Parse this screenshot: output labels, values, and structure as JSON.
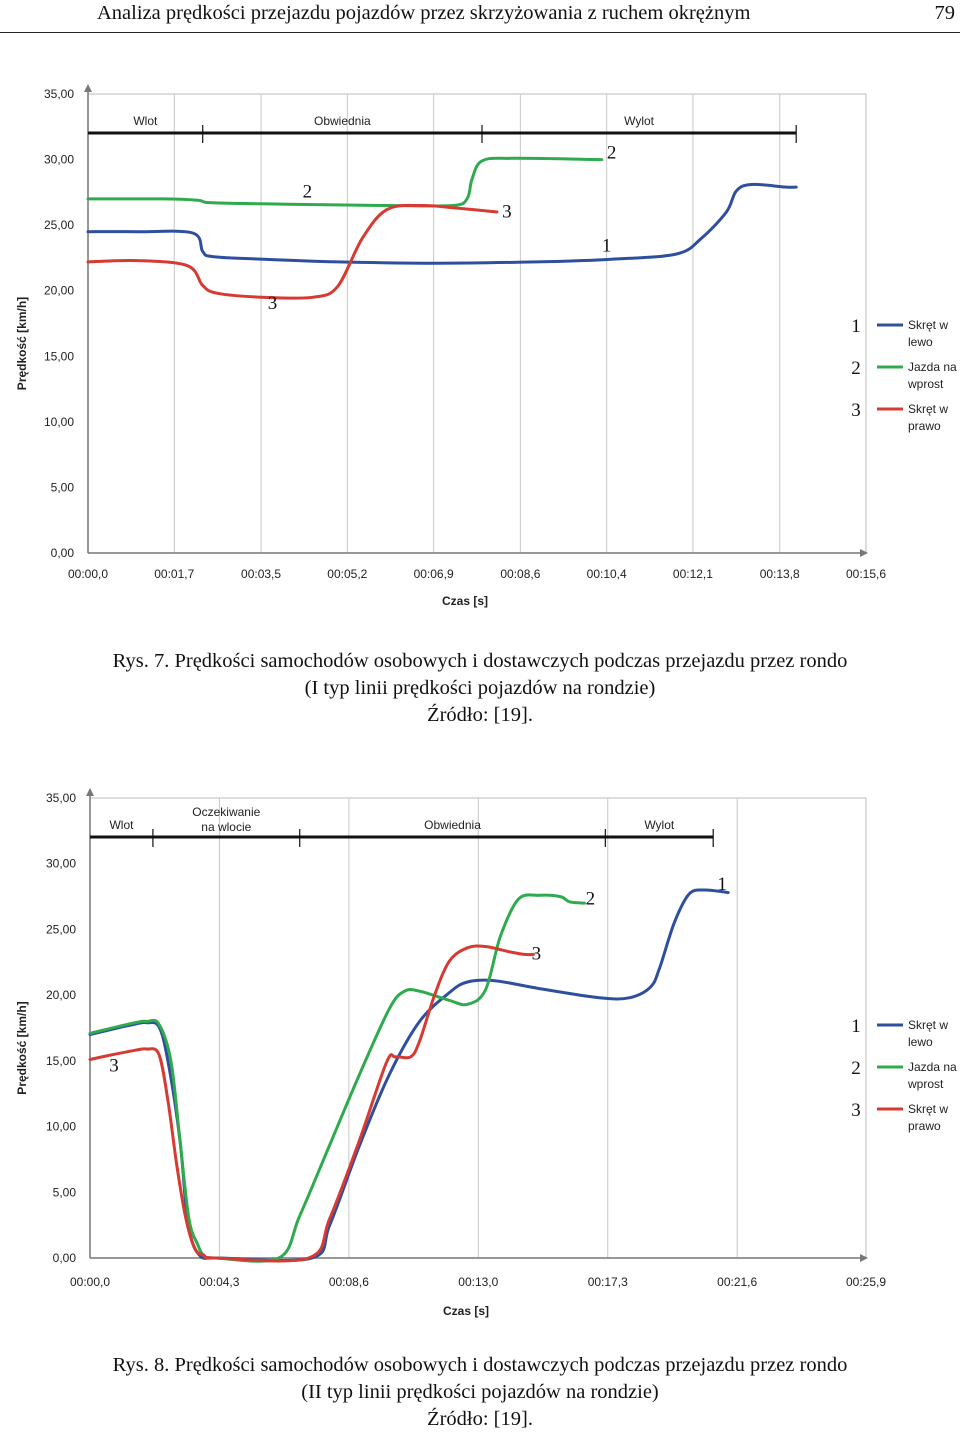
{
  "header": {
    "running_title": "Analiza prędkości przejazdu pojazdów przez skrzyżowania z ruchem okrężnym",
    "page_number": "79"
  },
  "chart_data": [
    {
      "type": "line",
      "ylabel": "Prędkość [km/h]",
      "xlabel": "Czas [s]",
      "ylim": [
        0,
        35
      ],
      "y_ticks": [
        "0,00",
        "5,00",
        "10,00",
        "15,00",
        "20,00",
        "25,00",
        "30,00",
        "35,00"
      ],
      "x_ticks": [
        "00:00,0",
        "00:01,7",
        "00:03,5",
        "00:05,2",
        "00:06,9",
        "00:08,6",
        "00:10,4",
        "00:12,1",
        "00:13,8",
        "00:15,6"
      ],
      "x_tick_seconds": [
        0,
        1.73,
        3.47,
        5.2,
        6.93,
        8.67,
        10.4,
        12.13,
        13.87,
        15.6
      ],
      "xlim": [
        0,
        15.6
      ],
      "grid": "vertical",
      "legend_position": "right",
      "phases": [
        "Wlot",
        "Obwiednia",
        "Wylot"
      ],
      "phase_boundaries_s": [
        0,
        2.3,
        7.9,
        14.2
      ],
      "series": [
        {
          "name": "Skręt w lewo",
          "number": "1",
          "color": "#2e4f9e",
          "x": [
            0,
            1.0,
            2.1,
            2.3,
            2.5,
            3.5,
            5.0,
            7.0,
            9.0,
            10.5,
            11.8,
            12.3,
            12.8,
            13.0,
            13.3,
            14.0,
            14.2
          ],
          "y": [
            24.5,
            24.5,
            24.4,
            23.0,
            22.6,
            22.4,
            22.2,
            22.1,
            22.2,
            22.4,
            22.8,
            24.0,
            26.0,
            27.6,
            28.1,
            27.9,
            27.9
          ]
        },
        {
          "name": "Jazda na wprost",
          "number": "2",
          "color": "#2faa4e",
          "x": [
            0,
            1.5,
            2.2,
            2.5,
            4.0,
            6.0,
            7.3,
            7.6,
            7.7,
            7.9,
            8.5,
            10.3
          ],
          "y": [
            27.0,
            27.0,
            26.9,
            26.7,
            26.6,
            26.5,
            26.5,
            27.0,
            28.5,
            29.9,
            30.1,
            30.0
          ]
        },
        {
          "name": "Skręt w prawo",
          "number": "3",
          "color": "#d63a32",
          "x": [
            0,
            1.0,
            2.0,
            2.3,
            2.6,
            3.5,
            4.5,
            5.0,
            5.5,
            6.0,
            6.7,
            7.4,
            8.2
          ],
          "y": [
            22.2,
            22.3,
            21.9,
            20.4,
            19.8,
            19.5,
            19.5,
            20.3,
            24.0,
            26.2,
            26.5,
            26.3,
            26.0
          ]
        }
      ],
      "annotations": [
        {
          "text": "2",
          "x": 4.4,
          "y": 27.1
        },
        {
          "text": "3",
          "x": 8.4,
          "y": 25.6
        },
        {
          "text": "2",
          "x": 10.5,
          "y": 30.1
        },
        {
          "text": "1",
          "x": 10.4,
          "y": 23.0
        },
        {
          "text": "3",
          "x": 3.7,
          "y": 18.6
        }
      ],
      "caption": [
        "Rys. 7. Prędkości samochodów osobowych i dostawczych podczas przejazdu przez rondo",
        "(I typ linii prędkości pojazdów na rondzie)",
        "Źródło: [19]."
      ]
    },
    {
      "type": "line",
      "ylabel": "Prędkość [km/h]",
      "xlabel": "Czas [s]",
      "ylim": [
        0,
        35
      ],
      "y_ticks": [
        "0,00",
        "5,00",
        "10,00",
        "15,00",
        "20,00",
        "25,00",
        "30,00",
        "35,00"
      ],
      "x_ticks": [
        "00:00,0",
        "00:04,3",
        "00:08,6",
        "00:13,0",
        "00:17,3",
        "00:21,6",
        "00:25,9"
      ],
      "x_tick_seconds": [
        0,
        4.32,
        8.64,
        12.96,
        17.28,
        21.6,
        25.9
      ],
      "xlim": [
        0,
        25.9
      ],
      "grid": "vertical",
      "legend_position": "right",
      "phases": [
        "Wlot",
        "Oczekiwanie na wlocie",
        "Obwiednia",
        "Wylot"
      ],
      "phase_boundaries_s": [
        0,
        2.1,
        7.0,
        17.2,
        20.8
      ],
      "series": [
        {
          "name": "Skręt w lewo",
          "number": "1",
          "color": "#2e4f9e",
          "x": [
            0,
            1.5,
            1.9,
            2.3,
            2.6,
            3.0,
            3.2,
            3.4,
            3.7,
            4.0,
            4.3,
            7.4,
            8.0,
            9.0,
            10.0,
            11.0,
            12.0,
            12.6,
            13.5,
            15.0,
            17.0,
            18.0,
            18.7,
            19.0,
            19.5,
            20.0,
            20.5,
            21.0,
            21.3
          ],
          "y": [
            17.0,
            17.8,
            17.9,
            17.6,
            15.0,
            9.0,
            4.0,
            1.3,
            0.1,
            0,
            0,
            0,
            2.5,
            8.6,
            14.0,
            18.0,
            20.2,
            21.0,
            21.1,
            20.5,
            19.8,
            19.8,
            20.6,
            22.0,
            25.5,
            27.7,
            28.0,
            27.9,
            27.8
          ]
        },
        {
          "name": "Jazda na wprost",
          "number": "2",
          "color": "#2faa4e",
          "x": [
            0,
            1.5,
            1.9,
            2.3,
            2.7,
            3.0,
            3.3,
            3.6,
            3.8,
            4.2,
            6.3,
            7.0,
            8.0,
            9.0,
            10.0,
            10.5,
            11.0,
            12.0,
            12.6,
            13.2,
            13.7,
            14.3,
            15.0,
            15.7,
            16.0,
            16.5
          ],
          "y": [
            17.1,
            17.9,
            18.0,
            17.8,
            15.0,
            9.0,
            3.0,
            1.0,
            0.2,
            0,
            0,
            3.2,
            8.6,
            14.0,
            19.0,
            20.3,
            20.3,
            19.6,
            19.3,
            20.4,
            24.5,
            27.3,
            27.6,
            27.5,
            27.1,
            27.0
          ]
        },
        {
          "name": "Skręt w prawo",
          "number": "3",
          "color": "#d63a32",
          "x": [
            0,
            0.6,
            1.5,
            1.9,
            2.3,
            2.6,
            2.9,
            3.2,
            3.5,
            3.8,
            4.2,
            7.3,
            8.0,
            9.0,
            9.9,
            10.2,
            10.7,
            11.0,
            11.5,
            12.0,
            12.6,
            13.2,
            14.0,
            14.5,
            14.8
          ],
          "y": [
            15.1,
            15.4,
            15.8,
            15.9,
            15.5,
            12.0,
            7.0,
            3.0,
            0.7,
            0.2,
            0,
            0,
            3.0,
            9.0,
            14.9,
            15.3,
            15.3,
            16.5,
            20.0,
            22.6,
            23.6,
            23.7,
            23.3,
            23.1,
            23.1
          ]
        }
      ],
      "annotations": [
        {
          "text": "1",
          "x": 21.1,
          "y": 28.0
        },
        {
          "text": "2",
          "x": 16.7,
          "y": 26.9
        },
        {
          "text": "3",
          "x": 14.9,
          "y": 22.7
        },
        {
          "text": "3",
          "x": 0.8,
          "y": 14.2
        }
      ],
      "caption": [
        "Rys. 8. Prędkości samochodów osobowych i dostawczych podczas przejazdu przez rondo",
        "(II typ linii prędkości pojazdów na rondzie)",
        "Źródło: [19]."
      ]
    }
  ]
}
